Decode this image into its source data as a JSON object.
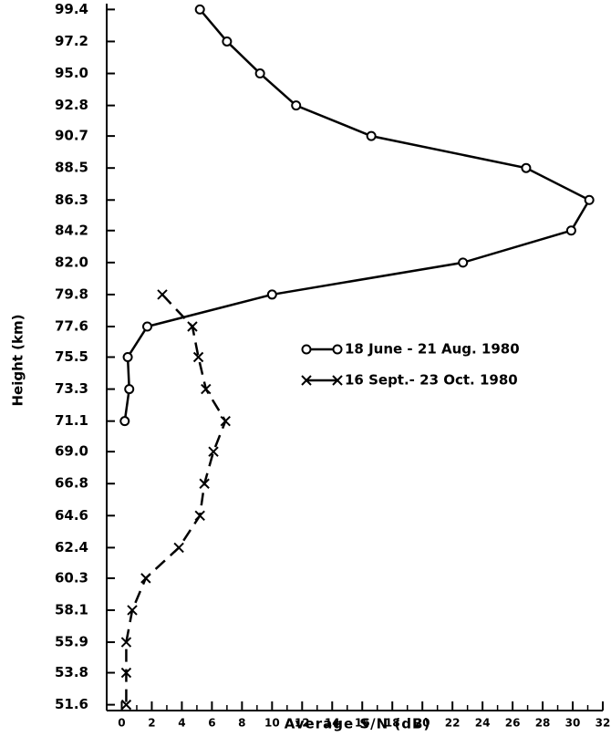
{
  "chart_data": {
    "type": "line",
    "x_label": "Average S/N (dB)",
    "y_label": "Height (km)",
    "xlim": [
      -1,
      32
    ],
    "xticks": [
      0,
      2,
      4,
      6,
      8,
      10,
      12,
      14,
      16,
      18,
      20,
      22,
      24,
      26,
      28,
      30,
      32
    ],
    "ylim": [
      51.2,
      99.8
    ],
    "yticks": [
      {
        "value": 51.6,
        "label": "51.6"
      },
      {
        "value": 53.8,
        "label": "53.8"
      },
      {
        "value": 55.9,
        "label": "55.9"
      },
      {
        "value": 58.1,
        "label": "58.1"
      },
      {
        "value": 60.3,
        "label": "60.3"
      },
      {
        "value": 62.4,
        "label": "62.4"
      },
      {
        "value": 64.6,
        "label": "64.6"
      },
      {
        "value": 66.8,
        "label": "66.8"
      },
      {
        "value": 69,
        "label": "69.0"
      },
      {
        "value": 71.1,
        "label": "71.1"
      },
      {
        "value": 73.3,
        "label": "73.3"
      },
      {
        "value": 75.5,
        "label": "75.5"
      },
      {
        "value": 77.6,
        "label": "77.6"
      },
      {
        "value": 79.8,
        "label": "79.8"
      },
      {
        "value": 82,
        "label": "82.0"
      },
      {
        "value": 84.2,
        "label": "84.2"
      },
      {
        "value": 86.3,
        "label": "86.3"
      },
      {
        "value": 88.5,
        "label": "88.5"
      },
      {
        "value": 90.7,
        "label": "90.7"
      },
      {
        "value": 92.8,
        "label": "92.8"
      },
      {
        "value": 95,
        "label": "95.0"
      },
      {
        "value": 97.2,
        "label": "97.2"
      },
      {
        "value": 99.4,
        "label": "99.4"
      }
    ],
    "series": [
      {
        "name": "18 June - 21 Aug. 1980",
        "color": "#000000",
        "marker": "circle",
        "dashed": false,
        "y": [
          99.4,
          97.2,
          95.0,
          92.8,
          90.7,
          88.5,
          86.3,
          84.2,
          82.0,
          79.8,
          77.6,
          75.5,
          73.3,
          71.1
        ],
        "values": [
          5.2,
          7.0,
          9.2,
          11.6,
          16.6,
          26.9,
          31.1,
          29.9,
          22.7,
          10.0,
          1.7,
          0.4,
          0.5,
          0.2
        ]
      },
      {
        "name": "16 Sept.- 23 Oct. 1980",
        "color": "#000000",
        "marker": "cross",
        "dashed": true,
        "y": [
          79.8,
          77.6,
          75.5,
          73.3,
          71.1,
          69.0,
          66.8,
          64.6,
          62.4,
          60.3,
          58.1,
          55.9,
          53.8,
          51.6
        ],
        "values": [
          2.7,
          4.7,
          5.1,
          5.6,
          6.9,
          6.1,
          5.5,
          5.2,
          3.8,
          1.6,
          0.7,
          0.3,
          0.3,
          0.3
        ]
      }
    ]
  }
}
